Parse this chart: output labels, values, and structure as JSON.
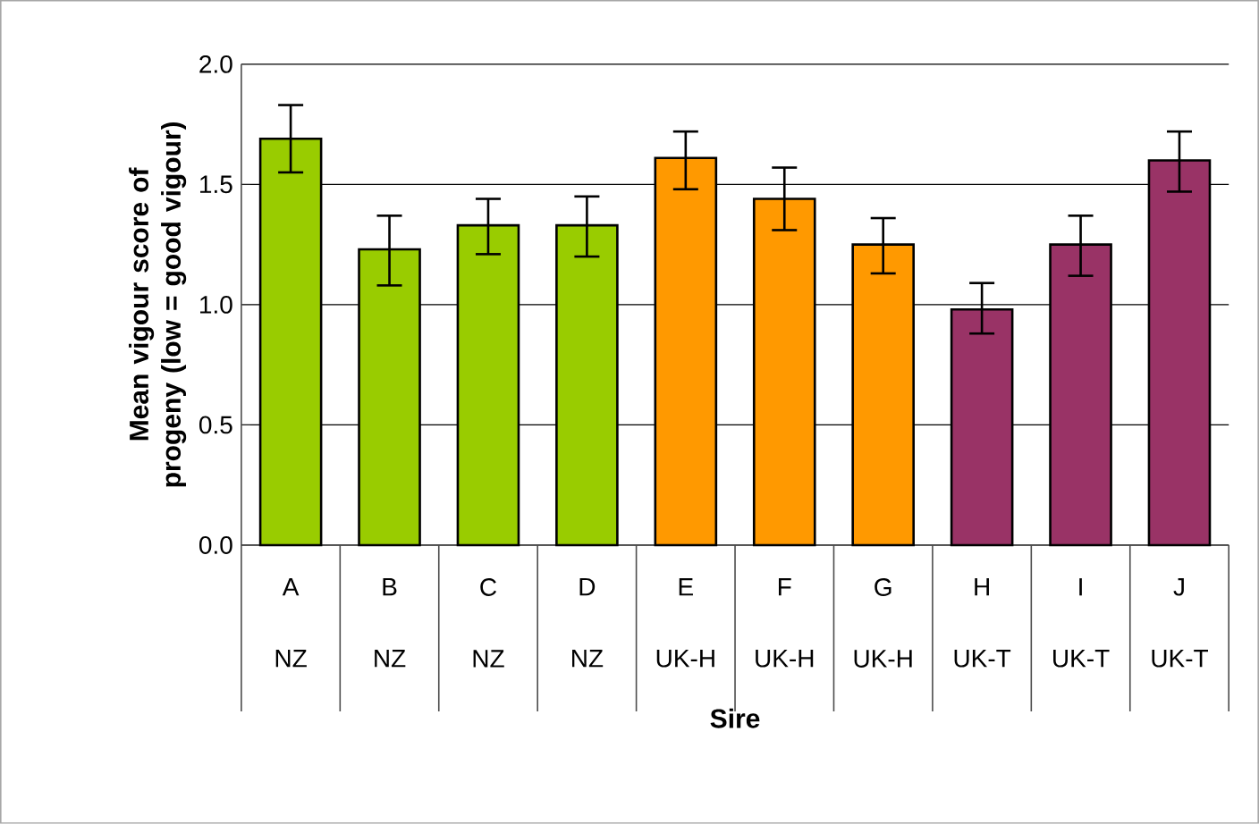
{
  "chart_data": {
    "type": "bar",
    "xlabel": "Sire",
    "ylabel": "Mean vigour score of progeny (low = good vigour)",
    "categories": [
      "A",
      "B",
      "C",
      "D",
      "E",
      "F",
      "G",
      "H",
      "I",
      "J"
    ],
    "values": [
      1.69,
      1.23,
      1.33,
      1.33,
      1.61,
      1.44,
      1.25,
      0.98,
      1.25,
      1.6
    ],
    "errors": [
      [
        1.55,
        1.83
      ],
      [
        1.08,
        1.37
      ],
      [
        1.21,
        1.44
      ],
      [
        1.2,
        1.45
      ],
      [
        1.48,
        1.72
      ],
      [
        1.31,
        1.57
      ],
      [
        1.13,
        1.36
      ],
      [
        0.88,
        1.09
      ],
      [
        1.12,
        1.37
      ],
      [
        1.47,
        1.72
      ]
    ],
    "colors": [
      "#99cc00",
      "#99cc00",
      "#99cc00",
      "#99cc00",
      "#ff9900",
      "#ff9900",
      "#ff9900",
      "#993366",
      "#993366",
      "#993366"
    ],
    "annotations": [
      "NZ",
      "NZ",
      "NZ",
      "NZ",
      "UK-H",
      "UK-H",
      "UK-H",
      "UK-T",
      "UK-T",
      "UK-T"
    ],
    "ylim": [
      0,
      2.0
    ],
    "yticks": [
      {
        "value": 0,
        "label": "0.0"
      },
      {
        "value": 0.5,
        "label": "0.5"
      },
      {
        "value": 1.0,
        "label": "1.0"
      },
      {
        "value": 1.5,
        "label": "1.5"
      },
      {
        "value": 2.0,
        "label": "2.0"
      }
    ],
    "grid": "y"
  }
}
